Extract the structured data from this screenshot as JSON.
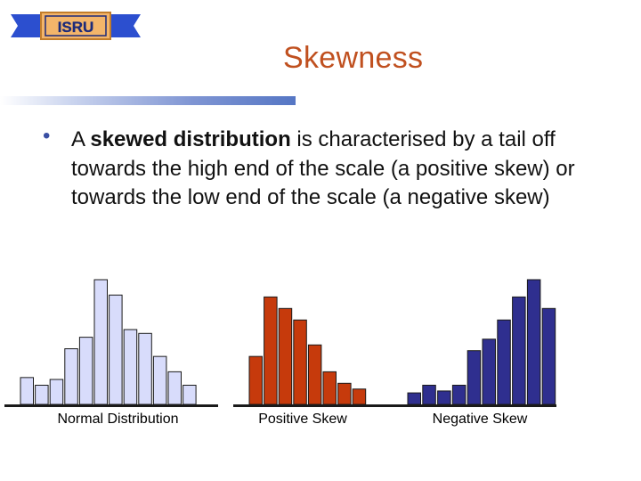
{
  "logo": {
    "text": "ISRU",
    "colors": {
      "banner_fill": "#2c4fcf",
      "plate_fill": "#f3b56a",
      "text": "#1c2a7a"
    }
  },
  "slide": {
    "title": "Skewness",
    "bullet": {
      "intro": "A ",
      "bold": "skewed distribution",
      "rest": " is characterised by a tail off towards the high end of the scale (a positive skew) or towards the low end of the scale (a negative skew)"
    }
  },
  "colors": {
    "title": "#c0501f",
    "normal_bar": "#d8dcfb",
    "positive_bar": "#c63a0c",
    "negative_bar": "#2f2f8f",
    "bar_outline": "#1a1a1a",
    "baseline": "#1a1a1a"
  },
  "chart_data": [
    {
      "type": "bar",
      "name": "Normal Distribution",
      "xlabel": "Normal Distribution",
      "values": [
        1.4,
        1.0,
        1.3,
        2.9,
        3.5,
        6.5,
        5.7,
        3.9,
        3.7,
        2.5,
        1.7,
        1.0
      ]
    },
    {
      "type": "bar",
      "name": "Positive Skew",
      "xlabel": "Positive Skew",
      "values": [
        2.5,
        5.6,
        5.0,
        4.4,
        3.1,
        1.7,
        1.1,
        0.8
      ]
    },
    {
      "type": "bar",
      "name": "Negative Skew",
      "xlabel": "Negative Skew",
      "values": [
        0.6,
        1.0,
        0.7,
        1.0,
        2.8,
        3.4,
        4.4,
        5.6,
        6.5,
        5.0
      ]
    }
  ]
}
